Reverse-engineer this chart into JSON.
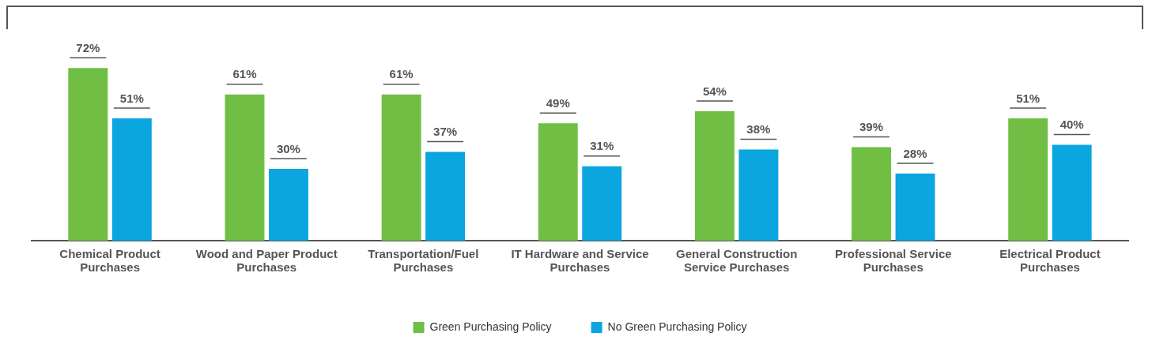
{
  "chart_data": {
    "type": "bar",
    "categories": [
      "Chemical Product Purchases",
      "Wood and Paper Product Purchases",
      "Transportation/Fuel Purchases",
      "IT Hardware and Service Purchases",
      "General Construction Service Purchases",
      "Professional Service Purchases",
      "Electrical Product Purchases"
    ],
    "series": [
      {
        "name": "Green Purchasing Policy",
        "color": "#70bf44",
        "values": [
          72,
          61,
          61,
          49,
          54,
          39,
          51
        ],
        "value_labels": [
          "72%",
          "61%",
          "61%",
          "49%",
          "54%",
          "39%",
          "51%"
        ]
      },
      {
        "name": "No Green Purchasing Policy",
        "color": "#0ba5e0",
        "values": [
          51,
          30,
          37,
          31,
          38,
          28,
          40
        ],
        "value_labels": [
          "51%",
          "30%",
          "37%",
          "31%",
          "38%",
          "28%",
          "40%"
        ]
      }
    ],
    "legend": "bottom",
    "grid": false,
    "tick_labels": "x"
  }
}
